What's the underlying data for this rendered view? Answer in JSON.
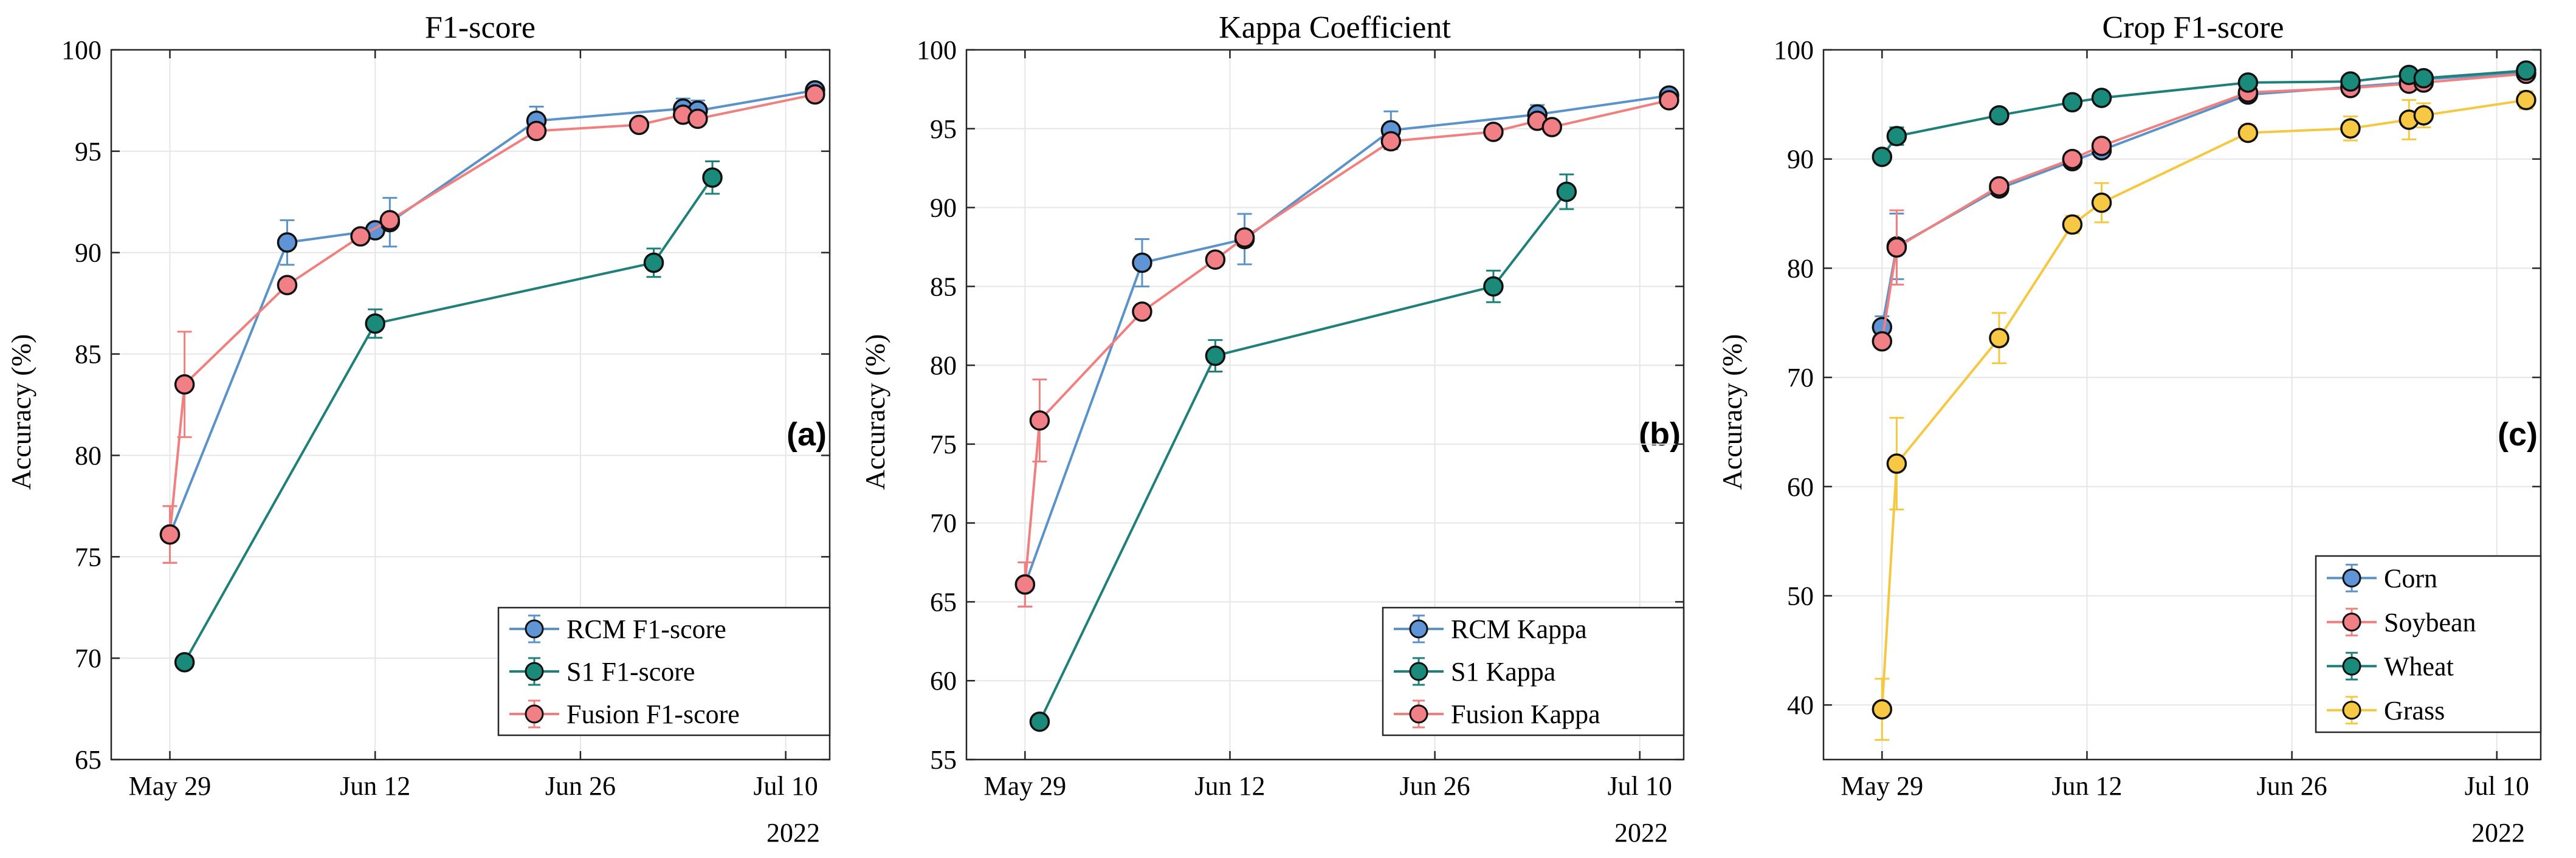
{
  "figure": {
    "year_label": "2022",
    "ylabel": "Accuracy (%)",
    "x_tick_labels": [
      "May 29",
      "Jun 12",
      "Jun 26",
      "Jul 10"
    ],
    "x_tick_days": [
      0,
      14,
      28,
      42
    ],
    "x_range_days": [
      -4,
      45
    ]
  },
  "colors": {
    "rcm": "#5b93c9",
    "s1": "#1f7f79",
    "fusion": "#f08080",
    "corn": "#5b93c9",
    "soybean": "#f08080",
    "wheat": "#1f7f79",
    "grass": "#f5c842",
    "rcm_marker": "#5f94d6",
    "s1_marker": "#1a8a7a",
    "fusion_marker": "#f07f86",
    "grass_marker": "#f6c843",
    "grid": "#e6e6e6"
  },
  "chart_data": [
    {
      "type": "line",
      "title": "F1-score",
      "panel_label": "(a)",
      "ylabel": "Accuracy (%)",
      "ylim": [
        65,
        100
      ],
      "yticks": [
        65,
        70,
        75,
        80,
        85,
        90,
        95,
        100
      ],
      "xlim_days": [
        -4,
        45
      ],
      "legend": "bottom-right",
      "series": [
        {
          "name": "RCM F1-score",
          "color_key": "rcm",
          "marker_key": "rcm_marker",
          "x": [
            0,
            8,
            14,
            15,
            25,
            35,
            36,
            44
          ],
          "y": [
            76.1,
            90.5,
            91.1,
            91.5,
            96.5,
            97.1,
            97.0,
            98.0
          ],
          "err": [
            1.4,
            1.1,
            0.0,
            1.2,
            0.7,
            0.5,
            0.5,
            0.3
          ]
        },
        {
          "name": "S1 F1-score",
          "color_key": "s1",
          "marker_key": "s1_marker",
          "x": [
            1,
            14,
            33,
            37
          ],
          "y": [
            69.8,
            86.5,
            89.5,
            93.7
          ],
          "err": [
            0.0,
            0.7,
            0.7,
            0.8
          ]
        },
        {
          "name": "Fusion F1-score",
          "color_key": "fusion",
          "marker_key": "fusion_marker",
          "x": [
            0,
            1,
            8,
            13,
            15,
            25,
            32,
            35,
            36,
            44
          ],
          "y": [
            76.1,
            83.5,
            88.4,
            90.8,
            91.6,
            96.0,
            96.3,
            96.8,
            96.6,
            97.8
          ],
          "err": [
            1.4,
            2.6,
            0.0,
            0.0,
            0.0,
            0.0,
            0.0,
            0.0,
            0.0,
            0.3
          ]
        }
      ]
    },
    {
      "type": "line",
      "title": "Kappa Coefficient",
      "panel_label": "(b)",
      "ylabel": "Accuracy (%)",
      "ylim": [
        55,
        100
      ],
      "yticks": [
        55,
        60,
        65,
        70,
        75,
        80,
        85,
        90,
        95,
        100
      ],
      "xlim_days": [
        -4,
        45
      ],
      "legend": "bottom-right",
      "series": [
        {
          "name": "RCM Kappa",
          "color_key": "rcm",
          "marker_key": "rcm_marker",
          "x": [
            0,
            8,
            15,
            25,
            35,
            44
          ],
          "y": [
            66.1,
            86.5,
            88.0,
            94.9,
            95.9,
            97.1
          ],
          "err": [
            1.4,
            1.5,
            1.6,
            1.2,
            0.6,
            0.4
          ]
        },
        {
          "name": "S1 Kappa",
          "color_key": "s1",
          "marker_key": "s1_marker",
          "x": [
            1,
            13,
            32,
            37
          ],
          "y": [
            57.4,
            80.6,
            85.0,
            91.0
          ],
          "err": [
            0.0,
            1.0,
            1.0,
            1.1
          ]
        },
        {
          "name": "Fusion Kappa",
          "color_key": "fusion",
          "marker_key": "fusion_marker",
          "x": [
            0,
            1,
            8,
            13,
            15,
            25,
            32,
            35,
            36,
            44
          ],
          "y": [
            66.1,
            76.5,
            83.4,
            86.7,
            88.1,
            94.2,
            94.8,
            95.5,
            95.1,
            96.8
          ],
          "err": [
            1.4,
            2.6,
            0.0,
            0.0,
            0.0,
            0.0,
            0.0,
            0.0,
            0.0,
            0.4
          ]
        }
      ]
    },
    {
      "type": "line",
      "title": "Crop F1-score",
      "panel_label": "(c)",
      "ylabel": "Accuracy (%)",
      "ylim": [
        35,
        100
      ],
      "yticks": [
        40,
        50,
        60,
        70,
        80,
        90,
        100
      ],
      "xlim_days": [
        -4,
        45
      ],
      "legend": "bottom-right",
      "series": [
        {
          "name": "Corn",
          "color_key": "corn",
          "marker_key": "rcm_marker",
          "x": [
            0,
            1,
            8,
            13,
            15,
            25,
            32,
            36,
            37,
            44
          ],
          "y": [
            74.6,
            82.0,
            87.3,
            89.8,
            90.8,
            95.9,
            96.6,
            97.0,
            97.3,
            97.9
          ],
          "err": [
            1.0,
            3.0,
            0.6,
            0.6,
            0.5,
            0.4,
            0.3,
            0.3,
            0.3,
            0.2
          ]
        },
        {
          "name": "Soybean",
          "color_key": "soybean",
          "marker_key": "fusion_marker",
          "x": [
            0,
            1,
            8,
            13,
            15,
            25,
            32,
            36,
            37,
            44
          ],
          "y": [
            73.3,
            81.9,
            87.5,
            90.0,
            91.2,
            96.1,
            96.5,
            96.9,
            97.0,
            97.8
          ],
          "err": [
            0.0,
            3.4,
            0.5,
            0.5,
            0.4,
            0.4,
            0.3,
            0.3,
            0.3,
            0.2
          ]
        },
        {
          "name": "Wheat",
          "color_key": "wheat",
          "marker_key": "s1_marker",
          "x": [
            0,
            1,
            8,
            13,
            15,
            25,
            32,
            36,
            37,
            44
          ],
          "y": [
            90.2,
            92.1,
            94.0,
            95.2,
            95.6,
            97.0,
            97.1,
            97.7,
            97.4,
            98.1
          ],
          "err": [
            0.0,
            0.8,
            0.5,
            0.5,
            0.4,
            0.4,
            0.3,
            0.3,
            0.3,
            0.3
          ]
        },
        {
          "name": "Grass",
          "color_key": "grass",
          "marker_key": "grass_marker",
          "x": [
            0,
            1,
            8,
            13,
            15,
            25,
            32,
            36,
            37,
            44
          ],
          "y": [
            39.6,
            62.1,
            73.6,
            84.0,
            86.0,
            92.4,
            92.8,
            93.6,
            94.0,
            95.4
          ],
          "err": [
            2.8,
            4.2,
            2.3,
            0.8,
            1.8,
            0.7,
            1.1,
            1.8,
            1.1,
            0.8
          ]
        }
      ]
    }
  ]
}
